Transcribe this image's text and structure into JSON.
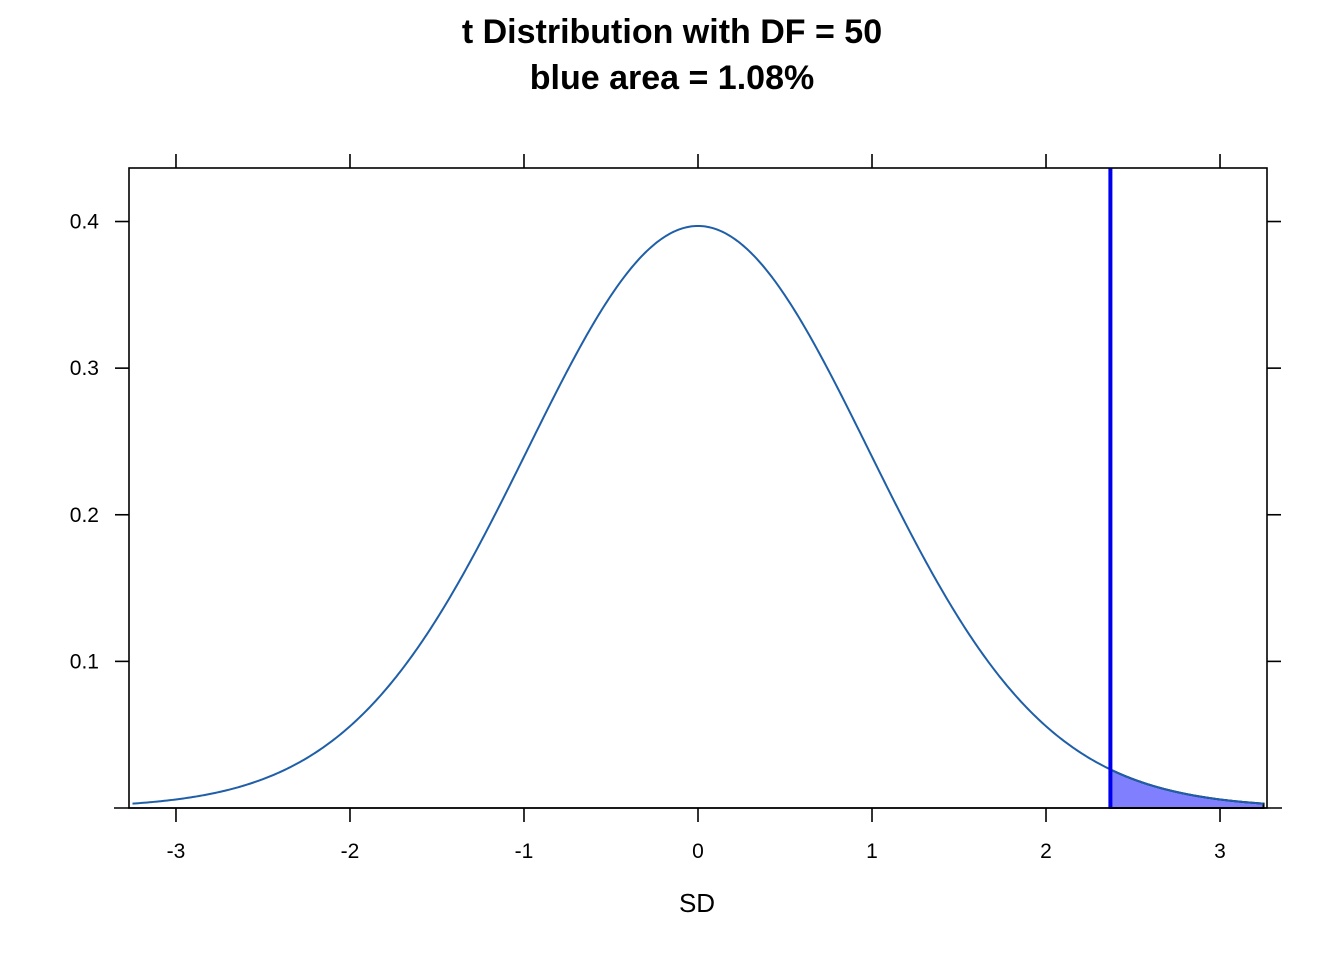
{
  "chart_data": {
    "type": "area",
    "title": "t Distribution with DF = 50",
    "subtitle": "blue area = 1.08%",
    "xlabel": "SD",
    "ylabel": "",
    "df": 50,
    "critical_value": 2.37,
    "shaded_tail": "right",
    "xlim": [
      -3.27,
      3.27
    ],
    "ylim": [
      0,
      0.4365
    ],
    "x_ticks": [
      -3,
      -2,
      -1,
      0,
      1,
      2,
      3
    ],
    "x_tick_labels": [
      "-3",
      "-2",
      "-1",
      "0",
      "1",
      "2",
      "3"
    ],
    "y_ticks": [
      0.1,
      0.2,
      0.3,
      0.4
    ],
    "y_tick_labels": [
      "0.1",
      "0.2",
      "0.3",
      "0.4"
    ],
    "series": [
      {
        "x": [
          -3.25,
          -3.0,
          -2.75,
          -2.5,
          -2.25,
          -2.0,
          -1.75,
          -1.5,
          -1.25,
          -1.0,
          -0.75,
          -0.5,
          -0.25,
          0.0,
          0.25,
          0.5,
          0.75,
          1.0,
          1.25,
          1.5,
          1.75,
          2.0,
          2.25,
          2.5,
          2.75,
          3.0,
          3.25
        ],
        "y": [
          0.0029,
          0.0059,
          0.0111,
          0.0195,
          0.0325,
          0.0536,
          0.0861,
          0.129,
          0.182,
          0.2398,
          0.2994,
          0.3502,
          0.386,
          0.397,
          0.386,
          0.3502,
          0.2994,
          0.2398,
          0.182,
          0.129,
          0.0861,
          0.0536,
          0.0325,
          0.0195,
          0.0111,
          0.0059,
          0.0029
        ]
      }
    ],
    "colors": {
      "curve": "#1f5fa8",
      "critical_line": "#0000ee",
      "tail_fill": "#8080ff",
      "tail_outline": "#000000"
    },
    "grid": false,
    "legend": "none"
  }
}
